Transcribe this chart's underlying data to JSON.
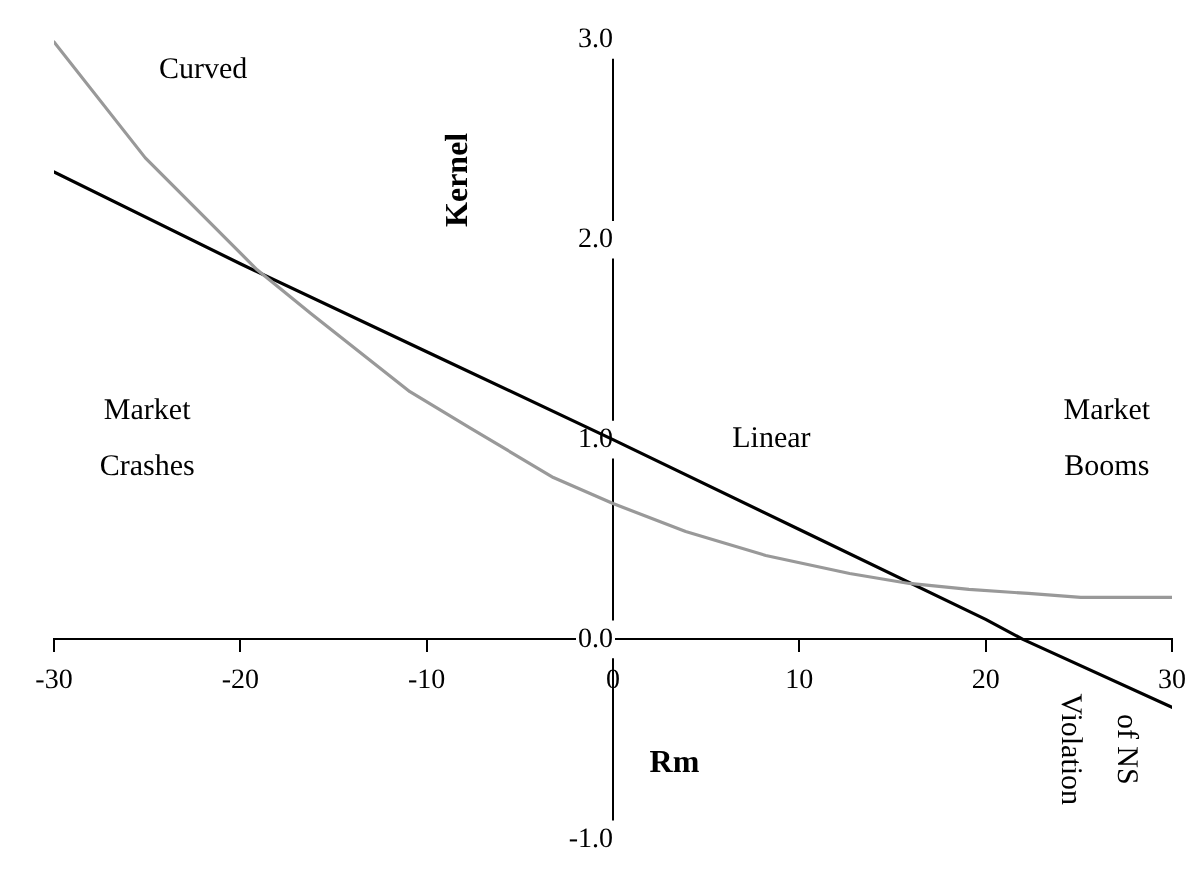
{
  "chart_data": {
    "type": "line",
    "xlabel": "Rm",
    "ylabel": "Kernel",
    "xlim": [
      -30,
      30
    ],
    "xticks": [
      -30,
      -20,
      -10,
      0,
      10,
      20,
      30
    ],
    "ylim": [
      -1,
      3
    ],
    "yticks": [
      {
        "value": -1,
        "label": "-1.0"
      },
      {
        "value": 0,
        "label": "0.0"
      },
      {
        "value": 1,
        "label": "1.0"
      },
      {
        "value": 2,
        "label": "2.0"
      },
      {
        "value": 3,
        "label": "3.0"
      }
    ],
    "grid": false,
    "legend": false,
    "marker": "none",
    "line_style": "solid",
    "series": [
      {
        "name": "Curved",
        "color": "#999999",
        "x": [
          -30,
          -25.1,
          -19.1,
          -16.2,
          -10.9,
          -7.7,
          -3.2,
          0,
          3.9,
          8.2,
          12.7,
          15.9,
          19.1,
          22.3,
          25.1,
          30
        ],
        "values": [
          2.99,
          2.41,
          1.85,
          1.63,
          1.24,
          1.06,
          0.81,
          0.68,
          0.54,
          0.42,
          0.33,
          0.28,
          0.25,
          0.23,
          0.21,
          0.21
        ]
      },
      {
        "name": "Linear",
        "color": "#000000",
        "x": [
          -30,
          -20,
          -10,
          0,
          10,
          20,
          22,
          30
        ],
        "values": [
          2.34,
          1.88,
          1.44,
          1.0,
          0.55,
          0.1,
          0,
          -0.34
        ]
      }
    ],
    "annotations": [
      "Market Crashes",
      "Market Booms",
      "Violation of NS"
    ]
  }
}
